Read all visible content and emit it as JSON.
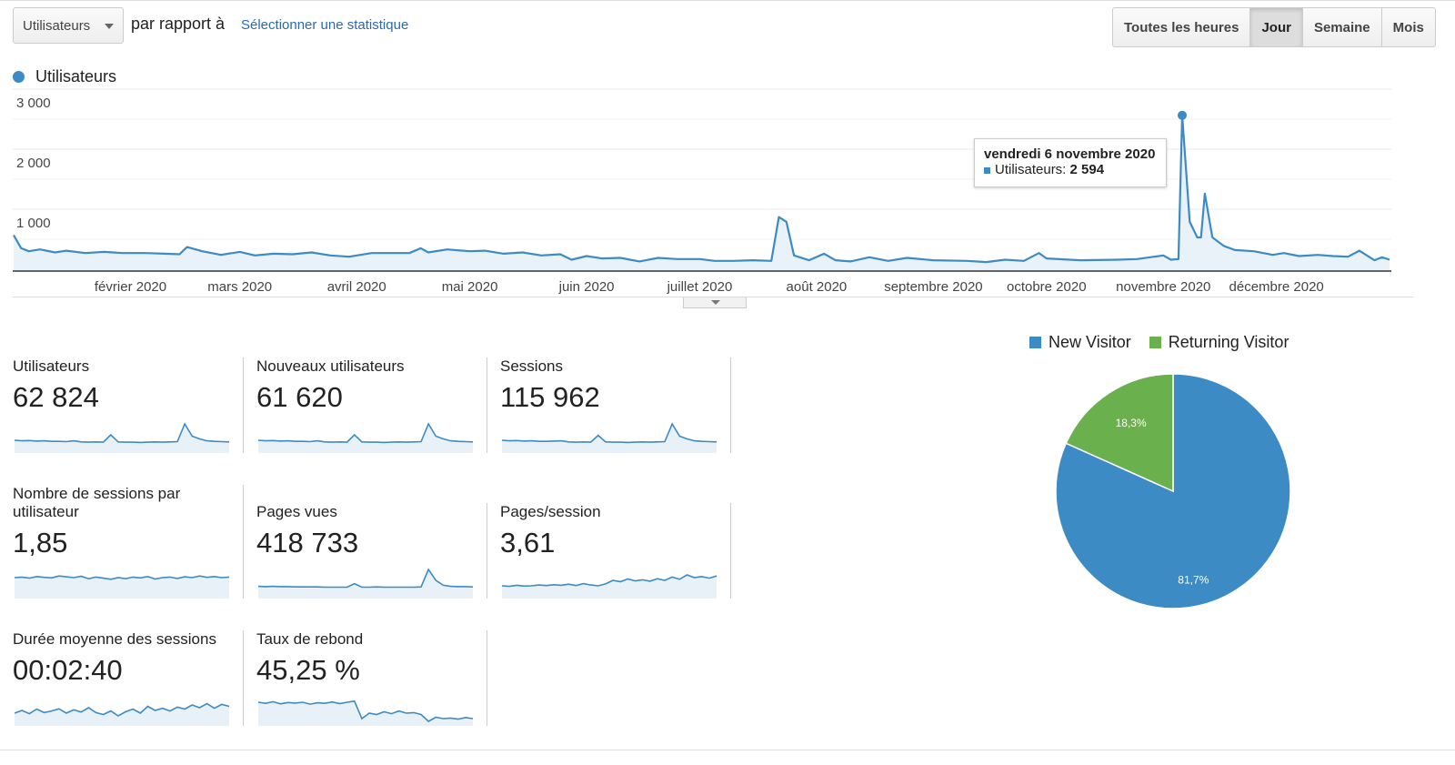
{
  "toolbar": {
    "metric_select": "Utilisateurs",
    "compare_text": "par rapport à",
    "select_stat_link": "Sélectionner une statistique",
    "granularity": [
      {
        "label": "Toutes les heures",
        "active": false
      },
      {
        "label": "Jour",
        "active": true
      },
      {
        "label": "Semaine",
        "active": false
      },
      {
        "label": "Mois",
        "active": false
      }
    ]
  },
  "colors": {
    "primary": "#3d8bc4",
    "secondary": "#6ab04c",
    "link": "#2a6ab0"
  },
  "chart_data": [
    {
      "type": "area",
      "series": [
        {
          "name": "Utilisateurs",
          "points": [
            [
              "2020-01-01",
              600
            ],
            [
              "2020-01-03",
              380
            ],
            [
              "2020-01-05",
              330
            ],
            [
              "2020-01-08",
              360
            ],
            [
              "2020-01-12",
              310
            ],
            [
              "2020-01-15",
              340
            ],
            [
              "2020-01-20",
              300
            ],
            [
              "2020-01-25",
              320
            ],
            [
              "2020-01-30",
              300
            ],
            [
              "2020-02-05",
              300
            ],
            [
              "2020-02-10",
              290
            ],
            [
              "2020-02-14",
              280
            ],
            [
              "2020-02-16",
              400
            ],
            [
              "2020-02-20",
              330
            ],
            [
              "2020-02-25",
              270
            ],
            [
              "2020-03-01",
              320
            ],
            [
              "2020-03-05",
              260
            ],
            [
              "2020-03-10",
              290
            ],
            [
              "2020-03-15",
              280
            ],
            [
              "2020-03-20",
              310
            ],
            [
              "2020-03-25",
              260
            ],
            [
              "2020-03-30",
              240
            ],
            [
              "2020-04-05",
              300
            ],
            [
              "2020-04-10",
              300
            ],
            [
              "2020-04-15",
              300
            ],
            [
              "2020-04-18",
              380
            ],
            [
              "2020-04-20",
              310
            ],
            [
              "2020-04-25",
              360
            ],
            [
              "2020-05-01",
              330
            ],
            [
              "2020-05-05",
              340
            ],
            [
              "2020-05-10",
              290
            ],
            [
              "2020-05-15",
              310
            ],
            [
              "2020-05-20",
              260
            ],
            [
              "2020-05-25",
              280
            ],
            [
              "2020-05-28",
              190
            ],
            [
              "2020-06-01",
              250
            ],
            [
              "2020-06-05",
              210
            ],
            [
              "2020-06-10",
              220
            ],
            [
              "2020-06-15",
              160
            ],
            [
              "2020-06-20",
              220
            ],
            [
              "2020-06-25",
              200
            ],
            [
              "2020-07-01",
              200
            ],
            [
              "2020-07-05",
              170
            ],
            [
              "2020-07-10",
              170
            ],
            [
              "2020-07-15",
              180
            ],
            [
              "2020-07-20",
              170
            ],
            [
              "2020-07-22",
              900
            ],
            [
              "2020-07-24",
              820
            ],
            [
              "2020-07-26",
              260
            ],
            [
              "2020-07-30",
              180
            ],
            [
              "2020-08-03",
              290
            ],
            [
              "2020-08-06",
              180
            ],
            [
              "2020-08-10",
              160
            ],
            [
              "2020-08-15",
              230
            ],
            [
              "2020-08-20",
              170
            ],
            [
              "2020-08-25",
              220
            ],
            [
              "2020-09-01",
              180
            ],
            [
              "2020-09-10",
              170
            ],
            [
              "2020-09-15",
              150
            ],
            [
              "2020-09-20",
              190
            ],
            [
              "2020-09-25",
              170
            ],
            [
              "2020-09-29",
              300
            ],
            [
              "2020-10-01",
              210
            ],
            [
              "2020-10-10",
              180
            ],
            [
              "2020-10-20",
              190
            ],
            [
              "2020-10-25",
              200
            ],
            [
              "2020-11-01",
              260
            ],
            [
              "2020-11-03",
              190
            ],
            [
              "2020-11-05",
              200
            ],
            [
              "2020-11-06",
              2594
            ],
            [
              "2020-11-08",
              820
            ],
            [
              "2020-11-10",
              560
            ],
            [
              "2020-11-11",
              560
            ],
            [
              "2020-11-12",
              1290
            ],
            [
              "2020-11-14",
              560
            ],
            [
              "2020-11-17",
              420
            ],
            [
              "2020-11-20",
              350
            ],
            [
              "2020-11-25",
              330
            ],
            [
              "2020-11-30",
              270
            ],
            [
              "2020-12-03",
              300
            ],
            [
              "2020-12-07",
              250
            ],
            [
              "2020-12-12",
              270
            ],
            [
              "2020-12-16",
              250
            ],
            [
              "2020-12-20",
              240
            ],
            [
              "2020-12-23",
              340
            ],
            [
              "2020-12-27",
              180
            ],
            [
              "2020-12-29",
              230
            ],
            [
              "2020-12-31",
              190
            ]
          ]
        }
      ],
      "legend": "Utilisateurs",
      "ylim": [
        0,
        3000
      ],
      "yticks": [
        {
          "value": 1000,
          "label": "1 000"
        },
        {
          "value": 2000,
          "label": "2 000"
        },
        {
          "value": 3000,
          "label": "3 000"
        }
      ],
      "xticks": [
        {
          "date": "2020-02-01",
          "label": "février 2020"
        },
        {
          "date": "2020-03-01",
          "label": "mars 2020"
        },
        {
          "date": "2020-04-01",
          "label": "avril 2020"
        },
        {
          "date": "2020-05-01",
          "label": "mai 2020"
        },
        {
          "date": "2020-06-01",
          "label": "juin 2020"
        },
        {
          "date": "2020-07-01",
          "label": "juillet 2020"
        },
        {
          "date": "2020-08-01",
          "label": "août 2020"
        },
        {
          "date": "2020-09-01",
          "label": "septembre 2020"
        },
        {
          "date": "2020-10-01",
          "label": "octobre 2020"
        },
        {
          "date": "2020-11-01",
          "label": "novembre 2020"
        },
        {
          "date": "2020-12-01",
          "label": "décembre 2020"
        }
      ],
      "xlim": [
        "2020-01-01",
        "2020-12-31"
      ],
      "grid": true,
      "tooltip": {
        "date": "vendredi 6 novembre 2020",
        "label": "Utilisateurs:",
        "value": "2 594"
      }
    },
    {
      "type": "pie",
      "categories": [
        "New Visitor",
        "Returning Visitor"
      ],
      "values": [
        81.7,
        18.3
      ],
      "labels": [
        "81,7%",
        "18,3%"
      ],
      "colors": [
        "#3d8bc4",
        "#6ab04c"
      ],
      "legend": "top"
    }
  ],
  "metrics": [
    {
      "label": "Utilisateurs",
      "value": "62 824",
      "trend": [
        40,
        38,
        39,
        37,
        38,
        36,
        36,
        35,
        38,
        34,
        33,
        34,
        33,
        60,
        34,
        33,
        33,
        32,
        33,
        34,
        33,
        34,
        35,
        100,
        55,
        45,
        38,
        36,
        35,
        34
      ]
    },
    {
      "label": "Nouveaux utilisateurs",
      "value": "61 620",
      "trend": [
        40,
        38,
        39,
        37,
        38,
        36,
        36,
        35,
        38,
        34,
        33,
        34,
        33,
        60,
        34,
        33,
        33,
        32,
        33,
        34,
        33,
        34,
        35,
        100,
        55,
        45,
        38,
        36,
        35,
        34
      ]
    },
    {
      "label": "Sessions",
      "value": "115 962",
      "trend": [
        40,
        38,
        39,
        37,
        38,
        36,
        36,
        37,
        38,
        34,
        33,
        34,
        33,
        58,
        34,
        33,
        33,
        32,
        33,
        34,
        33,
        34,
        35,
        100,
        55,
        45,
        38,
        36,
        35,
        34
      ]
    },
    {
      "label": "Nombre de sessions par utilisateur",
      "value": "1,85",
      "trend": [
        70,
        72,
        68,
        74,
        71,
        69,
        76,
        73,
        70,
        75,
        66,
        72,
        68,
        64,
        70,
        66,
        72,
        69,
        74,
        65,
        70,
        72,
        67,
        73,
        70,
        76,
        71,
        74,
        70,
        72
      ]
    },
    {
      "label": "Pages vues",
      "value": "418 733",
      "trend": [
        38,
        37,
        38,
        37,
        37,
        36,
        36,
        36,
        36,
        35,
        35,
        35,
        35,
        48,
        35,
        35,
        36,
        35,
        35,
        35,
        35,
        35,
        36,
        100,
        60,
        42,
        38,
        37,
        37,
        36
      ]
    },
    {
      "label": "Pages/session",
      "value": "3,61",
      "trend": [
        40,
        38,
        42,
        39,
        40,
        43,
        41,
        44,
        42,
        46,
        41,
        48,
        43,
        40,
        47,
        60,
        55,
        65,
        58,
        62,
        57,
        66,
        60,
        72,
        64,
        80,
        70,
        74,
        68,
        76
      ]
    },
    {
      "label": "Durée moyenne des sessions",
      "value": "00:02:40",
      "trend": [
        40,
        50,
        38,
        55,
        42,
        48,
        56,
        40,
        52,
        44,
        60,
        42,
        35,
        48,
        30,
        45,
        55,
        40,
        65,
        50,
        58,
        48,
        62,
        55,
        70,
        60,
        75,
        58,
        72,
        65
      ]
    },
    {
      "label": "Taux de rebond",
      "value": "45,25 %",
      "trend": [
        80,
        76,
        82,
        74,
        79,
        77,
        80,
        73,
        78,
        76,
        81,
        75,
        80,
        84,
        20,
        40,
        35,
        45,
        38,
        48,
        40,
        42,
        35,
        10,
        25,
        20,
        22,
        18,
        24,
        20
      ]
    }
  ]
}
